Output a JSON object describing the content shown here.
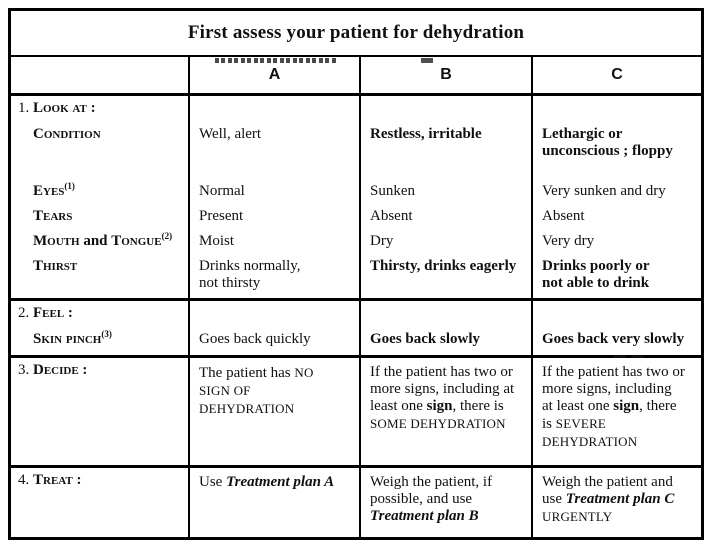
{
  "title": "First assess your patient for dehydration",
  "columns": {
    "a": "A",
    "b": "B",
    "c": "C"
  },
  "sections": {
    "look": {
      "number": "1.",
      "label": "Look at :",
      "condition": {
        "label": "Condition",
        "a": "Well, alert",
        "b": "Restless, irritable",
        "c": "Lethargic or unconscious ; floppy"
      },
      "eyes": {
        "label": "Eyes",
        "sup": "(1)",
        "a": "Normal",
        "b": "Sunken",
        "c": "Very sunken and dry"
      },
      "tears": {
        "label": "Tears",
        "a": "Present",
        "b": "Absent",
        "c": "Absent"
      },
      "mouth": {
        "label_1": "Mouth",
        "label_2": " and ",
        "label_3": "Tongue",
        "sup": "(2)",
        "a": "Moist",
        "b": "Dry",
        "c": "Very dry"
      },
      "thirst": {
        "label": "Thirst",
        "a": "Drinks normally, not thirsty",
        "b": "Thirsty, drinks eagerly",
        "c": "Drinks poorly or not able to drink"
      }
    },
    "feel": {
      "number": "2.",
      "label": "Feel :",
      "skin_pinch": {
        "label": "Skin pinch",
        "sup": "(3)",
        "a": "Goes back quickly",
        "b": "Goes back slowly",
        "c": "Goes back very slowly"
      }
    },
    "decide": {
      "number": "3.",
      "label": "Decide :",
      "a": {
        "text": "The patient has ",
        "caps": "NO SIGN OF DEHYDRATION"
      },
      "b": {
        "text": "If the patient has two or more signs, inclu­ding at least one ",
        "bold": "sign",
        "text2": ", there is ",
        "caps": "SOME DEHYDRATION"
      },
      "c": {
        "text": "If the patient has two or more signs, inclu­ding at least one ",
        "bold": "sign",
        "text2": ", there is ",
        "caps": "SEVERE DEHYDRATION"
      }
    },
    "treat": {
      "number": "4.",
      "label": "Treat :",
      "a": {
        "text": "Use ",
        "plan": "Treatment plan A"
      },
      "b": {
        "text": "Weigh the patient, if possible, and use ",
        "plan": "Treatment plan B"
      },
      "c": {
        "text": "Weigh the patient and use ",
        "plan": "Treatment plan C",
        "caps": "URGENTLY"
      }
    }
  },
  "colors": {
    "ink": "#101010",
    "paper": "#ffffff"
  }
}
